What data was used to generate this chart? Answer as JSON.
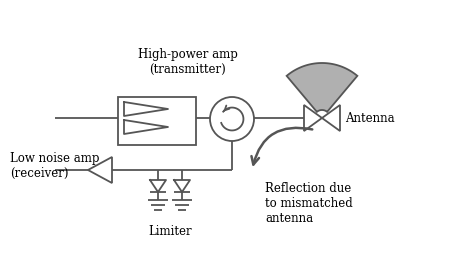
{
  "bg_color": "#ffffff",
  "line_color": "#555555",
  "gray_fill": "#b0b0b0",
  "labels": {
    "high_power_amp": "High-power amp\n(transmitter)",
    "low_noise_amp": "Low noise amp\n(receiver)",
    "antenna": "Antenna",
    "limiter": "Limiter",
    "reflection": "Reflection due\nto mismatched\nantenna"
  },
  "figsize": [
    4.74,
    2.71
  ],
  "dpi": 100
}
